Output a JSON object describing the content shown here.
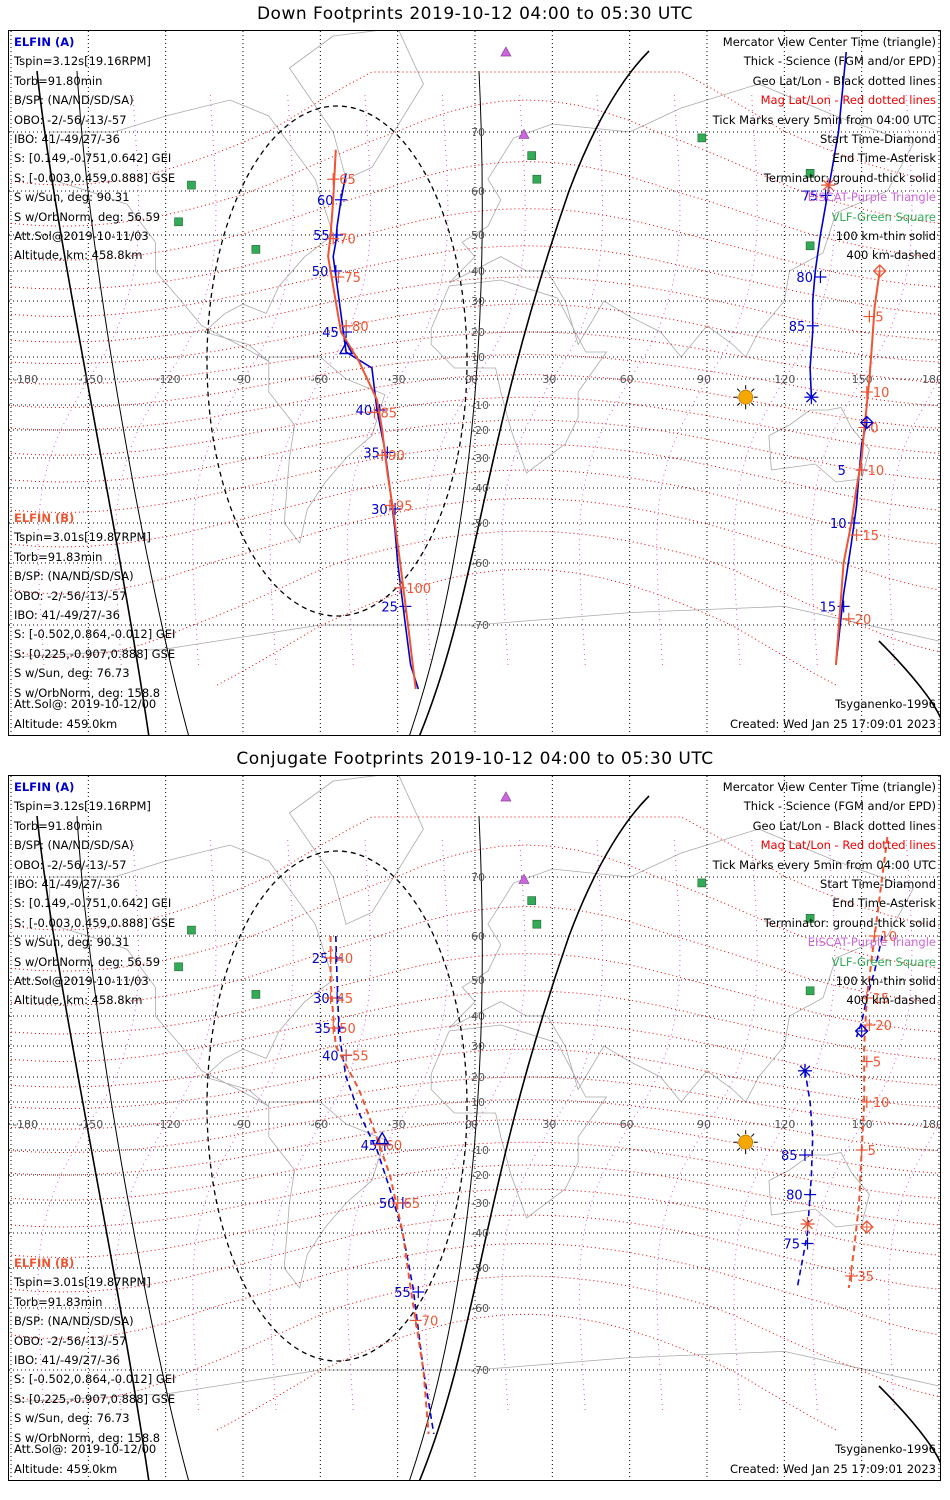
{
  "panels": [
    {
      "title": "Down Footprints 2019-10-12 04:00 to 05:30 UTC",
      "mode": "down"
    },
    {
      "title": "Conjugate Footprints 2019-10-12 04:00 to 05:30 UTC",
      "mode": "conjugate"
    }
  ],
  "elfin_a": {
    "name": "ELFIN (A)",
    "lines": [
      "Tspin=3.12s[19.16RPM]",
      "Torb=91.80min",
      "B/SP: (NA/ND/SD/SA)",
      "OBO: -2/-56/-13/-57",
      "IBO: 41/-49/27/-36",
      "S: [0.149,-0.751,0.642] GEI",
      "S: [-0.003,0.459,0.888] GSE",
      "S w/Sun, deg: 90.31",
      "S w/OrbNorm, deg: 56.59",
      "Att.Sol@2019-10-11/03",
      "Altitude, km: 458.8km"
    ],
    "color": "#0000cc"
  },
  "elfin_b": {
    "name": "ELFIN (B)",
    "lines": [
      "Tspin=3.01s[19.87RPM]",
      "Torb=91.83min",
      "B/SP: (NA/ND/SD/SA)",
      "OBO: -2/-56/-13/-57",
      "IBO: 41/-49/27/-36",
      "S: [-0.502,0.864,-0.012] GEI",
      "S: [0.225,-0.907,0.888] GSE",
      "S w/Sun, deg: 76.73",
      "S w/OrbNorm, deg: 158.8"
    ],
    "att_sol": "Att.Sol@: 2019-10-12/00",
    "altitude": "Altitude: 459.0km",
    "color": "#ee5533"
  },
  "legend": {
    "view": "Mercator View Center Time (triangle)",
    "thick": "Thick - Science (FGM and/or EPD)",
    "geo": "Geo Lat/Lon - Black dotted lines",
    "mag": "Mag Lat/Lon - Red dotted lines",
    "ticks": "Tick Marks every 5min from 04:00 UTC",
    "start": "Start Time-Diamond",
    "end": "End Time-Asterisk",
    "terminator": "Terminator: ground-thick solid",
    "eiscat": "EISCAT-Purple Triangle",
    "vlf": "VLF-Green Square",
    "km100": "100 km-thin solid",
    "km400": "400 km-dashed"
  },
  "credit": "Tsyganenko-1996",
  "created": "Created: Wed Jan 25 17:09:01 2023",
  "axes": {
    "lon_ticks": [
      "-180",
      "-150",
      "-120",
      "-90",
      "-60",
      "-30",
      "0",
      "30",
      "60",
      "90",
      "120",
      "150",
      "180"
    ],
    "lat_ticks": [
      "70",
      "60",
      "50",
      "40",
      "30",
      "20",
      "10",
      "0",
      "-10",
      "-20",
      "-30",
      "-40",
      "-50",
      "-60",
      "-70"
    ]
  },
  "colors": {
    "elfin_a": "#0000cc",
    "elfin_b": "#ee5533",
    "mag_grid": "#ee0000",
    "geo_grid": "#000000",
    "eiscat": "#cc66dd",
    "vlf": "#33aa55",
    "sun": "#f5a800",
    "land": "#aaaaaa"
  },
  "chart_data": [
    {
      "type": "map",
      "panel": "Down Footprints",
      "projection": "Mercator",
      "lon_range": [
        -180,
        180
      ],
      "lat_range": [
        -75,
        75
      ],
      "eiscat_sites": [
        {
          "lon": 12,
          "lat": 80
        },
        {
          "lon": 19,
          "lat": 69.6
        }
      ],
      "vlf_sites": [
        {
          "lon": -110,
          "lat": 61
        },
        {
          "lon": -85,
          "lat": 46
        },
        {
          "lon": -115,
          "lat": 53
        },
        {
          "lon": 22,
          "lat": 66
        },
        {
          "lon": 24,
          "lat": 62
        },
        {
          "lon": 88,
          "lat": 69
        },
        {
          "lon": 130,
          "lat": 63
        },
        {
          "lon": 130,
          "lat": 47
        }
      ],
      "sun": {
        "lon": 105,
        "lat": -7
      },
      "series": [
        {
          "name": "ELFIN (A)",
          "segments": [
            {
              "lon": [
                -50,
                -52,
                -53.5,
                -54,
                -55,
                -50,
                -40,
                -38,
                -35,
                -33,
                -31,
                -30,
                -27,
                -25,
                -22
              ],
              "lat": [
                63,
                58,
                52,
                48,
                44,
                12,
                5,
                -12,
                -27,
                -40,
                -52,
                -60,
                -70,
                -75,
                -78
              ],
              "ticks": [
                {
                  "label": "60",
                  "lon": -52,
                  "lat": 58
                },
                {
                  "label": "55",
                  "lon": -53.5,
                  "lat": 50
                },
                {
                  "label": "50",
                  "lon": -54,
                  "lat": 40
                },
                {
                  "label": "45",
                  "lon": -50,
                  "lat": 20
                },
                {
                  "label": "40",
                  "lon": -37,
                  "lat": -12
                },
                {
                  "label": "35",
                  "lon": -34,
                  "lat": -28
                },
                {
                  "label": "30",
                  "lon": -31,
                  "lat": -46
                },
                {
                  "label": "25",
                  "lon": -27,
                  "lat": -67
                }
              ]
            },
            {
              "lon": [
                144,
                141,
                137,
                134,
                132,
                131,
                131,
                130,
                130.5
              ],
              "lat": [
                80,
                70,
                60,
                50,
                40,
                30,
                20,
                5,
                -7
              ],
              "ticks": [
                {
                  "label": "75",
                  "lon": 136,
                  "lat": 59
                },
                {
                  "label": "80",
                  "lon": 134,
                  "lat": 38
                },
                {
                  "label": "85",
                  "lon": 131,
                  "lat": 22
                }
              ]
            },
            {
              "lon": [
                152,
                150,
                149,
                148,
                146,
                143,
                140
              ],
              "lat": [
                -17,
                -25,
                -35,
                -45,
                -55,
                -65,
                -75
              ],
              "ticks": [
                {
                  "label": "5",
                  "lon": 150,
                  "lat": -34
                },
                {
                  "label": "10",
                  "lon": 147,
                  "lat": -50
                },
                {
                  "label": "15",
                  "lon": 143,
                  "lat": -67
                }
              ]
            }
          ]
        },
        {
          "name": "ELFIN (B)",
          "segments": [
            {
              "lon": [
                -54,
                -55,
                -56,
                -57,
                -52,
                -45,
                -38,
                -36,
                -34,
                -32,
                -29,
                -26,
                -23
              ],
              "lat": [
                67,
                58,
                50,
                44,
                20,
                8,
                -8,
                -20,
                -35,
                -45,
                -60,
                -70,
                -78
              ],
              "ticks": [
                {
                  "label": "65",
                  "lon": -55,
                  "lat": 62
                },
                {
                  "label": "70",
                  "lon": -55,
                  "lat": 49
                },
                {
                  "label": "75",
                  "lon": -53,
                  "lat": 38
                },
                {
                  "label": "80",
                  "lon": -50,
                  "lat": 22
                },
                {
                  "label": "85",
                  "lon": -39,
                  "lat": -13
                },
                {
                  "label": "90",
                  "lon": -36,
                  "lat": -29
                },
                {
                  "label": "95",
                  "lon": -33,
                  "lat": -45
                },
                {
                  "label": "100",
                  "lon": -29,
                  "lat": -64
                }
              ]
            },
            {
              "lon": [
                157,
                155,
                154,
                153,
                152,
                151,
                150,
                148,
                146,
                143,
                140
              ],
              "lat": [
                40,
                28,
                15,
                0,
                -10,
                -20,
                -30,
                -40,
                -50,
                -60,
                -75
              ],
              "ticks": [
                {
                  "label": "5",
                  "lon": 153,
                  "lat": 25
                },
                {
                  "label": "10",
                  "lon": 152,
                  "lat": -5
                },
                {
                  "label": "0",
                  "lon": 151,
                  "lat": -19
                },
                {
                  "label": "10",
                  "lon": 150,
                  "lat": -34
                },
                {
                  "label": "15",
                  "lon": 148,
                  "lat": -53
                },
                {
                  "label": "20",
                  "lon": 145,
                  "lat": -69
                }
              ]
            }
          ]
        }
      ]
    },
    {
      "type": "map",
      "panel": "Conjugate Footprints",
      "projection": "Mercator",
      "lon_range": [
        -180,
        180
      ],
      "lat_range": [
        -75,
        75
      ],
      "series": [
        {
          "name": "ELFIN (A)",
          "segments": [
            {
              "lon": [
                -54,
                -53.5,
                -53,
                -52,
                -50,
                -45,
                -38,
                -33,
                -28,
                -24,
                -20,
                -16
              ],
              "lat": [
                60,
                50,
                40,
                30,
                20,
                5,
                -10,
                -25,
                -40,
                -55,
                -70,
                -78
              ],
              "ticks": [
                {
                  "label": "25",
                  "lon": -54,
                  "lat": 55
                },
                {
                  "label": "30",
                  "lon": -53.5,
                  "lat": 45
                },
                {
                  "label": "35",
                  "lon": -53,
                  "lat": 36
                },
                {
                  "label": "40",
                  "lon": -50,
                  "lat": 27
                },
                {
                  "label": "45",
                  "lon": -35,
                  "lat": -8
                },
                {
                  "label": "50",
                  "lon": -28,
                  "lat": -30
                },
                {
                  "label": "55",
                  "lon": -22,
                  "lat": -56
                }
              ]
            },
            {
              "lon": [
                158,
                155,
                152,
                150,
                148
              ],
              "lat": [
                60,
                52,
                45,
                38,
                33
              ]
            },
            {
              "lon": [
                128,
                130,
                131,
                130.5,
                129,
                125
              ],
              "lat": [
                22,
                10,
                -5,
                -20,
                -40,
                -55
              ],
              "ticks": [
                {
                  "label": "85",
                  "lon": 128,
                  "lat": -12
                },
                {
                  "label": "80",
                  "lon": 130,
                  "lat": -27
                },
                {
                  "label": "75",
                  "lon": 129,
                  "lat": -43
                }
              ]
            }
          ]
        },
        {
          "name": "ELFIN (B)",
          "segments": [
            {
              "lon": [
                -56,
                -56,
                -55,
                -54,
                -45,
                -40,
                -33,
                -28,
                -25,
                -20,
                -18
              ],
              "lat": [
                60,
                50,
                40,
                30,
                15,
                0,
                -20,
                -40,
                -55,
                -70,
                -78
              ],
              "ticks": [
                {
                  "label": "40",
                  "lon": -56,
                  "lat": 55
                },
                {
                  "label": "45",
                  "lon": -56,
                  "lat": 45
                },
                {
                  "label": "50",
                  "lon": -55,
                  "lat": 36
                },
                {
                  "label": "55",
                  "lon": -50,
                  "lat": 27
                },
                {
                  "label": "60",
                  "lon": -37,
                  "lat": -8
                },
                {
                  "label": "65",
                  "lon": -30,
                  "lat": -30
                },
                {
                  "label": "70",
                  "lon": -23,
                  "lat": -62
                }
              ]
            },
            {
              "lon": [
                160,
                155,
                152,
                151,
                151,
                150,
                149,
                147,
                145
              ],
              "lat": [
                75,
                60,
                45,
                30,
                10,
                -10,
                -30,
                -45,
                -55
              ],
              "ticks": [
                {
                  "label": "10",
                  "lon": 155,
                  "lat": 60
                },
                {
                  "label": "15",
                  "lon": 152,
                  "lat": 45
                },
                {
                  "label": "20",
                  "lon": 153,
                  "lat": 37
                },
                {
                  "label": "5",
                  "lon": 152,
                  "lat": 25
                },
                {
                  "label": "10",
                  "lon": 152,
                  "lat": 10
                },
                {
                  "label": "5",
                  "lon": 150,
                  "lat": -10
                },
                {
                  "label": "35",
                  "lon": 146,
                  "lat": -52
                }
              ]
            }
          ]
        }
      ]
    }
  ]
}
